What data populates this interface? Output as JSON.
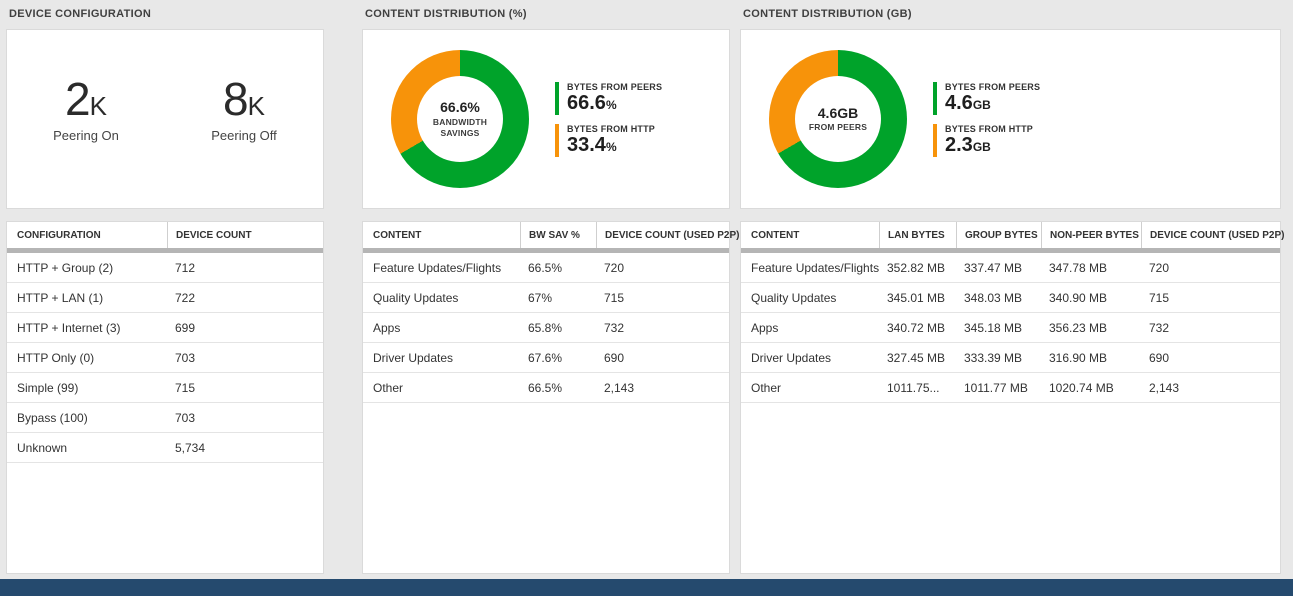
{
  "colors": {
    "green": "#00a32a",
    "orange": "#f7930a",
    "footer_bar": "#254a6e"
  },
  "panels": {
    "device_configuration": {
      "title": "DEVICE CONFIGURATION",
      "stats": [
        {
          "value": "2",
          "unit": "K",
          "label": "Peering On"
        },
        {
          "value": "8",
          "unit": "K",
          "label": "Peering Off"
        }
      ],
      "table": {
        "columns": [
          "CONFIGURATION",
          "DEVICE COUNT"
        ],
        "rows": [
          [
            "HTTP + Group (2)",
            "712"
          ],
          [
            "HTTP + LAN (1)",
            "722"
          ],
          [
            "HTTP + Internet (3)",
            "699"
          ],
          [
            "HTTP Only (0)",
            "703"
          ],
          [
            "Simple (99)",
            "715"
          ],
          [
            "Bypass (100)",
            "703"
          ],
          [
            "Unknown",
            "5,734"
          ]
        ]
      }
    },
    "content_distribution_pct": {
      "title": "CONTENT DISTRIBUTION (%)",
      "donut_center": {
        "value": "66.6%",
        "line1": "BANDWIDTH",
        "line2": "SAVINGS"
      },
      "legend": [
        {
          "label": "BYTES FROM PEERS",
          "value": "66.6",
          "unit": "%"
        },
        {
          "label": "BYTES FROM HTTP",
          "value": "33.4",
          "unit": "%"
        }
      ],
      "table": {
        "columns": [
          "CONTENT",
          "BW SAV %",
          "DEVICE COUNT (USED P2P)"
        ],
        "rows": [
          [
            "Feature Updates/Flights",
            "66.5%",
            "720"
          ],
          [
            "Quality Updates",
            "67%",
            "715"
          ],
          [
            "Apps",
            "65.8%",
            "732"
          ],
          [
            "Driver Updates",
            "67.6%",
            "690"
          ],
          [
            "Other",
            "66.5%",
            "2,143"
          ]
        ]
      }
    },
    "content_distribution_gb": {
      "title": "CONTENT DISTRIBUTION (GB)",
      "donut_center": {
        "value": "4.6GB",
        "line1": "FROM PEERS",
        "line2": ""
      },
      "legend": [
        {
          "label": "BYTES FROM PEERS",
          "value": "4.6",
          "unit": "GB"
        },
        {
          "label": "BYTES FROM HTTP",
          "value": "2.3",
          "unit": "GB"
        }
      ],
      "table": {
        "columns": [
          "CONTENT",
          "LAN BYTES",
          "GROUP BYTES",
          "NON-PEER BYTES",
          "DEVICE COUNT (USED P2P)"
        ],
        "rows": [
          [
            "Feature Updates/Flights",
            "352.82 MB",
            "337.47 MB",
            "347.78 MB",
            "720"
          ],
          [
            "Quality Updates",
            "345.01 MB",
            "348.03 MB",
            "340.90 MB",
            "715"
          ],
          [
            "Apps",
            "340.72 MB",
            "345.18 MB",
            "356.23 MB",
            "732"
          ],
          [
            "Driver Updates",
            "327.45 MB",
            "333.39 MB",
            "316.90 MB",
            "690"
          ],
          [
            "Other",
            "1011.75...",
            "1011.77 MB",
            "1020.74 MB",
            "2,143"
          ]
        ]
      }
    }
  },
  "chart_data": [
    {
      "type": "pie",
      "donut": true,
      "title": "CONTENT DISTRIBUTION (%)",
      "labels": [
        "BYTES FROM PEERS",
        "BYTES FROM HTTP"
      ],
      "values": [
        66.6,
        33.4
      ],
      "unit": "%",
      "colors": [
        "#00a32a",
        "#f7930a"
      ],
      "center_label": "66.6% BANDWIDTH SAVINGS",
      "legend_position": "right"
    },
    {
      "type": "pie",
      "donut": true,
      "title": "CONTENT DISTRIBUTION (GB)",
      "labels": [
        "BYTES FROM PEERS",
        "BYTES FROM HTTP"
      ],
      "values": [
        4.6,
        2.3
      ],
      "unit": "GB",
      "colors": [
        "#00a32a",
        "#f7930a"
      ],
      "center_label": "4.6GB FROM PEERS",
      "legend_position": "right"
    }
  ]
}
